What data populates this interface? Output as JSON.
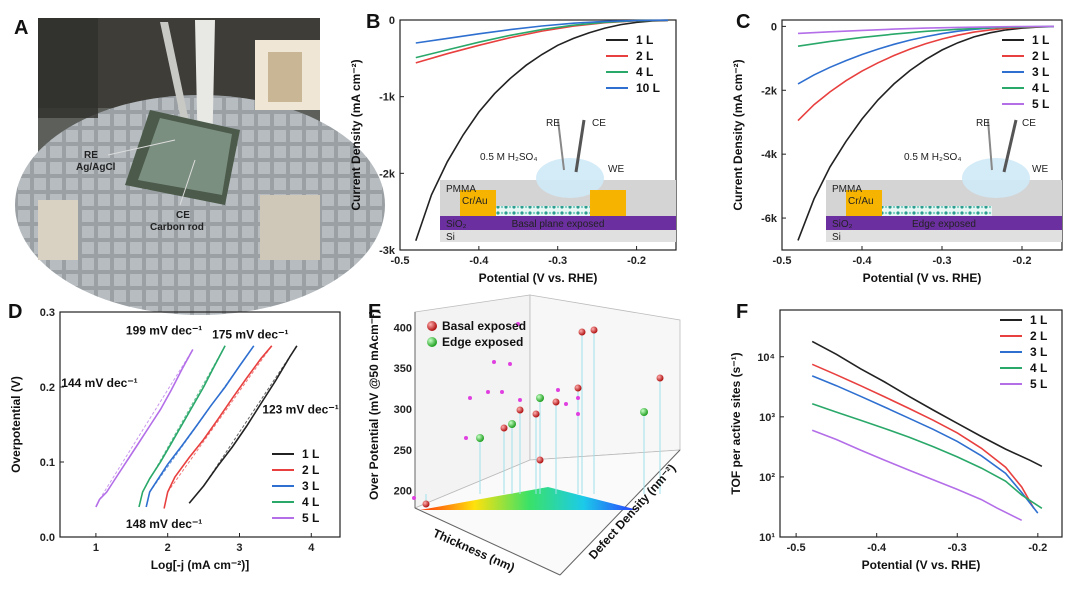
{
  "panel_labels": [
    "A",
    "B",
    "C",
    "D",
    "E",
    "F"
  ],
  "photo": {
    "label_re": "RE",
    "label_ref": "Ag/AgCl",
    "label_ce": "CE",
    "label_rod": "Carbon rod"
  },
  "chart_data": [
    {
      "id": "B",
      "type": "line",
      "xlabel": "Potential (V vs. RHE)",
      "ylabel": "Current Density (mA cm⁻²)",
      "xlim": [
        -0.5,
        -0.15
      ],
      "ylim": [
        -3000,
        0
      ],
      "xticks": [
        "-0.5",
        "-0.4",
        "-0.3",
        "-0.2"
      ],
      "xtick_values": [
        -0.5,
        -0.4,
        -0.3,
        -0.2
      ],
      "yticks": [
        "-3k",
        "-2k",
        "-1k",
        "0"
      ],
      "ytick_values": [
        -3000,
        -2000,
        -1000,
        0
      ],
      "series": [
        {
          "name": "1 L",
          "color": "#222222",
          "x": [
            -0.48,
            -0.46,
            -0.44,
            -0.42,
            -0.4,
            -0.38,
            -0.36,
            -0.34,
            -0.32,
            -0.3,
            -0.28,
            -0.26,
            -0.24,
            -0.22,
            -0.2,
            -0.18,
            -0.16
          ],
          "y": [
            -2880,
            -2280,
            -1850,
            -1500,
            -1200,
            -960,
            -760,
            -590,
            -450,
            -330,
            -240,
            -165,
            -105,
            -60,
            -30,
            -12,
            -5
          ]
        },
        {
          "name": "2 L",
          "color": "#e8403f",
          "x": [
            -0.48,
            -0.44,
            -0.4,
            -0.36,
            -0.32,
            -0.28,
            -0.24,
            -0.2,
            -0.16
          ],
          "y": [
            -560,
            -440,
            -330,
            -230,
            -145,
            -80,
            -35,
            -10,
            -3
          ]
        },
        {
          "name": "4 L",
          "color": "#2aa86a",
          "x": [
            -0.48,
            -0.44,
            -0.4,
            -0.36,
            -0.32,
            -0.28,
            -0.24,
            -0.2,
            -0.16
          ],
          "y": [
            -490,
            -390,
            -290,
            -200,
            -125,
            -68,
            -30,
            -9,
            -3
          ]
        },
        {
          "name": "10 L",
          "color": "#2e6fd0",
          "x": [
            -0.48,
            -0.44,
            -0.4,
            -0.36,
            -0.32,
            -0.28,
            -0.24,
            -0.2,
            -0.16
          ],
          "y": [
            -300,
            -240,
            -180,
            -125,
            -78,
            -42,
            -18,
            -6,
            -2
          ]
        }
      ],
      "inset": {
        "electrolyte": "0.5 M H₂SO₄",
        "re": "RE",
        "ce": "CE",
        "we": "WE",
        "pmma": "PMMA",
        "contact": "Cr/Au",
        "oxide": "SiO₂",
        "substrate": "Si",
        "caption": "Basal plane exposed"
      }
    },
    {
      "id": "C",
      "type": "line",
      "xlabel": "Potential (V vs. RHE)",
      "ylabel": "Current Density (mA cm⁻²)",
      "xlim": [
        -0.5,
        -0.15
      ],
      "ylim": [
        -7000,
        200
      ],
      "xticks": [
        "-0.5",
        "-0.4",
        "-0.3",
        "-0.2"
      ],
      "xtick_values": [
        -0.5,
        -0.4,
        -0.3,
        -0.2
      ],
      "yticks": [
        "-6k",
        "-4k",
        "-2k",
        "0"
      ],
      "ytick_values": [
        -6000,
        -4000,
        -2000,
        0
      ],
      "series": [
        {
          "name": "1 L",
          "color": "#222222",
          "x": [
            -0.48,
            -0.46,
            -0.44,
            -0.42,
            -0.4,
            -0.38,
            -0.36,
            -0.34,
            -0.32,
            -0.3,
            -0.28,
            -0.26,
            -0.24,
            -0.22,
            -0.2,
            -0.18,
            -0.16
          ],
          "y": [
            -6700,
            -5400,
            -4400,
            -3600,
            -2900,
            -2300,
            -1800,
            -1380,
            -1030,
            -740,
            -510,
            -330,
            -200,
            -110,
            -55,
            -22,
            -8
          ]
        },
        {
          "name": "2 L",
          "color": "#e8403f",
          "x": [
            -0.48,
            -0.46,
            -0.44,
            -0.42,
            -0.4,
            -0.38,
            -0.36,
            -0.34,
            -0.32,
            -0.3,
            -0.28,
            -0.26,
            -0.24,
            -0.22,
            -0.2,
            -0.16
          ],
          "y": [
            -2950,
            -2450,
            -2050,
            -1700,
            -1400,
            -1140,
            -910,
            -710,
            -540,
            -395,
            -275,
            -180,
            -110,
            -60,
            -28,
            -5
          ]
        },
        {
          "name": "3 L",
          "color": "#2e6fd0",
          "x": [
            -0.48,
            -0.46,
            -0.44,
            -0.42,
            -0.4,
            -0.38,
            -0.36,
            -0.34,
            -0.32,
            -0.3,
            -0.28,
            -0.26,
            -0.24,
            -0.22,
            -0.2,
            -0.16
          ],
          "y": [
            -1800,
            -1520,
            -1280,
            -1070,
            -880,
            -710,
            -560,
            -430,
            -320,
            -225,
            -150,
            -92,
            -52,
            -26,
            -12,
            -3
          ]
        },
        {
          "name": "4 L",
          "color": "#2aa86a",
          "x": [
            -0.48,
            -0.44,
            -0.4,
            -0.36,
            -0.32,
            -0.28,
            -0.24,
            -0.2,
            -0.16
          ],
          "y": [
            -620,
            -470,
            -345,
            -240,
            -155,
            -90,
            -45,
            -16,
            -4
          ]
        },
        {
          "name": "5 L",
          "color": "#b36ee8",
          "x": [
            -0.48,
            -0.44,
            -0.4,
            -0.36,
            -0.32,
            -0.28,
            -0.24,
            -0.2,
            -0.16
          ],
          "y": [
            -220,
            -170,
            -125,
            -86,
            -55,
            -31,
            -15,
            -5,
            -1
          ]
        }
      ],
      "inset": {
        "electrolyte": "0.5 M H₂SO₄",
        "re": "RE",
        "ce": "CE",
        "we": "WE",
        "pmma": "PMMA",
        "contact": "Cr/Au",
        "oxide": "SiO₂",
        "substrate": "Si",
        "caption": "Edge exposed"
      }
    },
    {
      "id": "D",
      "type": "line",
      "xlabel": "Log[-j (mA cm⁻²)]",
      "ylabel": "Overpotential (V)",
      "xlim": [
        0.5,
        4.4
      ],
      "ylim": [
        0,
        0.3
      ],
      "xticks": [
        "1",
        "2",
        "3",
        "4"
      ],
      "xtick_values": [
        1,
        2,
        3,
        4
      ],
      "yticks": [
        "0.0",
        "0.1",
        "0.2",
        "0.3"
      ],
      "ytick_values": [
        0,
        0.1,
        0.2,
        0.3
      ],
      "series": [
        {
          "name": "1 L",
          "color": "#222222",
          "x": [
            2.3,
            2.5,
            2.7,
            2.9,
            3.1,
            3.3,
            3.5,
            3.7,
            3.8
          ],
          "y": [
            0.045,
            0.068,
            0.095,
            0.12,
            0.148,
            0.178,
            0.208,
            0.24,
            0.255
          ]
        },
        {
          "name": "2 L",
          "color": "#e8403f",
          "x": [
            1.95,
            2.0,
            2.1,
            2.3,
            2.5,
            2.7,
            2.9,
            3.1,
            3.3,
            3.45
          ],
          "y": [
            0.038,
            0.06,
            0.08,
            0.106,
            0.13,
            0.157,
            0.185,
            0.212,
            0.238,
            0.255
          ]
        },
        {
          "name": "3 L",
          "color": "#2e6fd0",
          "x": [
            1.7,
            1.75,
            1.85,
            2.0,
            2.2,
            2.4,
            2.6,
            2.8,
            3.0,
            3.2
          ],
          "y": [
            0.04,
            0.06,
            0.075,
            0.097,
            0.122,
            0.148,
            0.175,
            0.2,
            0.228,
            0.255
          ]
        },
        {
          "name": "4 L",
          "color": "#2aa86a",
          "x": [
            1.6,
            1.65,
            1.75,
            1.9,
            2.05,
            2.2,
            2.35,
            2.5,
            2.65,
            2.8
          ],
          "y": [
            0.04,
            0.06,
            0.078,
            0.1,
            0.125,
            0.15,
            0.175,
            0.2,
            0.228,
            0.255
          ]
        },
        {
          "name": "5 L",
          "color": "#b36ee8",
          "x": [
            1.0,
            1.05,
            1.15,
            1.3,
            1.45,
            1.6,
            1.75,
            1.9,
            2.05,
            2.2,
            2.35
          ],
          "y": [
            0.04,
            0.05,
            0.06,
            0.082,
            0.104,
            0.126,
            0.148,
            0.17,
            0.196,
            0.224,
            0.25
          ]
        }
      ],
      "annotations": [
        {
          "text": "199 mV dec⁻¹",
          "color": "#2a9d2a",
          "at": [
            1.95,
            0.27
          ]
        },
        {
          "text": "175 mV dec⁻¹",
          "color": "#2546c8",
          "at": [
            3.15,
            0.265
          ]
        },
        {
          "text": "144 mV dec⁻¹",
          "color": "#a040e0",
          "at": [
            1.05,
            0.2
          ]
        },
        {
          "text": "123 mV dec⁻¹",
          "color": "#222222",
          "at": [
            3.85,
            0.165
          ]
        },
        {
          "text": "148 mV dec⁻¹",
          "color": "#e02020",
          "at": [
            1.95,
            0.012
          ]
        }
      ]
    },
    {
      "id": "E",
      "type": "scatter",
      "xlabel": "Thickness (nm)",
      "ylabel": "Over Potential (mV @50 mAcm⁻²)",
      "zlabel": "Defect Density (nm⁻²)",
      "yticks": [
        "200",
        "250",
        "300",
        "350",
        "400"
      ],
      "ytick_values": [
        200,
        250,
        300,
        350,
        400
      ],
      "legend": [
        {
          "name": "Basal exposed",
          "color": "#d42020"
        },
        {
          "name": "Edge exposed",
          "color": "#2ec02e"
        }
      ]
    },
    {
      "id": "F",
      "type": "line",
      "xlabel": "Potential (V vs. RHE)",
      "ylabel": "TOF per active sites (s⁻¹)",
      "xlim": [
        -0.52,
        -0.17
      ],
      "ylim": [
        10,
        60000
      ],
      "yscale": "log",
      "xticks": [
        "-0.5",
        "-0.4",
        "-0.3",
        "-0.2"
      ],
      "xtick_values": [
        -0.5,
        -0.4,
        -0.3,
        -0.2
      ],
      "yticks": [
        "10¹",
        "10²",
        "10³",
        "10⁴"
      ],
      "ytick_values": [
        10,
        100,
        1000,
        10000
      ],
      "series": [
        {
          "name": "1 L",
          "color": "#222222",
          "x": [
            -0.48,
            -0.45,
            -0.42,
            -0.39,
            -0.36,
            -0.33,
            -0.3,
            -0.27,
            -0.24,
            -0.21,
            -0.195
          ],
          "y": [
            18000,
            11000,
            6300,
            3800,
            2200,
            1300,
            780,
            470,
            290,
            190,
            150
          ]
        },
        {
          "name": "2 L",
          "color": "#e8403f",
          "x": [
            -0.48,
            -0.45,
            -0.42,
            -0.39,
            -0.36,
            -0.33,
            -0.3,
            -0.27,
            -0.24,
            -0.22,
            -0.205
          ],
          "y": [
            7500,
            5000,
            3300,
            2150,
            1380,
            880,
            540,
            300,
            145,
            68,
            30
          ]
        },
        {
          "name": "3 L",
          "color": "#2e6fd0",
          "x": [
            -0.48,
            -0.45,
            -0.42,
            -0.39,
            -0.36,
            -0.33,
            -0.3,
            -0.27,
            -0.24,
            -0.22,
            -0.2
          ],
          "y": [
            4800,
            3300,
            2200,
            1450,
            950,
            620,
            390,
            225,
            115,
            55,
            25
          ]
        },
        {
          "name": "4 L",
          "color": "#2aa86a",
          "x": [
            -0.48,
            -0.45,
            -0.42,
            -0.39,
            -0.36,
            -0.33,
            -0.3,
            -0.27,
            -0.24,
            -0.22,
            -0.195
          ],
          "y": [
            1650,
            1200,
            880,
            640,
            460,
            320,
            215,
            140,
            85,
            50,
            30
          ]
        },
        {
          "name": "5 L",
          "color": "#b36ee8",
          "x": [
            -0.48,
            -0.45,
            -0.42,
            -0.39,
            -0.36,
            -0.33,
            -0.3,
            -0.27,
            -0.25,
            -0.22
          ],
          "y": [
            600,
            420,
            280,
            190,
            130,
            90,
            62,
            42,
            30,
            19
          ]
        }
      ]
    }
  ]
}
